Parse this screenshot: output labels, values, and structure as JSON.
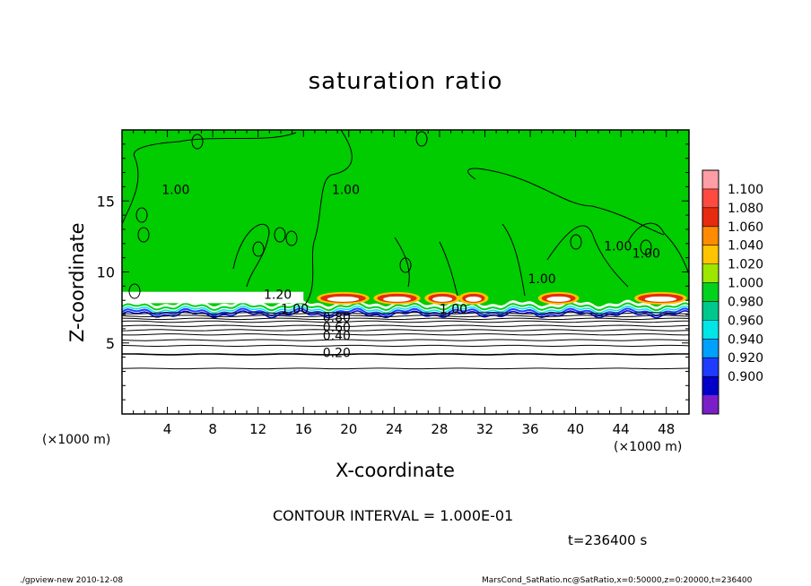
{
  "chart_data": {
    "type": "heatmap",
    "title": "saturation ratio",
    "xlabel": "X-coordinate",
    "ylabel": "Z-coordinate",
    "x_unit_label": "(×1000 m)",
    "xlim": [
      0,
      50
    ],
    "ylim": [
      0,
      20
    ],
    "x_ticks": [
      4,
      8,
      12,
      16,
      20,
      24,
      28,
      32,
      36,
      40,
      44,
      48
    ],
    "y_ticks": [
      5,
      10,
      15
    ],
    "colorbar": {
      "levels": [
        "1.100",
        "1.080",
        "1.060",
        "1.040",
        "1.020",
        "1.000",
        "0.980",
        "0.960",
        "0.940",
        "0.920",
        "0.900"
      ],
      "colors": [
        "#ff9ea4",
        "#ff4a40",
        "#e62b10",
        "#ff8c00",
        "#ffc400",
        "#9ce600",
        "#00d21e",
        "#00c88c",
        "#00e6e6",
        "#00a0ff",
        "#1e3cff",
        "#0000c8",
        "#7a1ec8"
      ]
    },
    "contour_labels": [
      {
        "text": "1.00",
        "x": 3.5,
        "z": 15.5
      },
      {
        "text": "1.00",
        "x": 18.5,
        "z": 15.5
      },
      {
        "text": "1.00",
        "x": 35.8,
        "z": 9.2
      },
      {
        "text": "1.00",
        "x": 42.5,
        "z": 11.5
      },
      {
        "text": "1.00",
        "x": 45.0,
        "z": 11.0
      },
      {
        "text": "1.20",
        "x": 12.5,
        "z": 8.1
      },
      {
        "text": "1.00",
        "x": 14.0,
        "z": 7.1
      },
      {
        "text": "1.00",
        "x": 28.0,
        "z": 7.1
      },
      {
        "text": "0.80",
        "x": 17.7,
        "z": 6.5
      },
      {
        "text": "0.60",
        "x": 17.7,
        "z": 5.8
      },
      {
        "text": "0.40",
        "x": 17.7,
        "z": 5.2
      },
      {
        "text": "0.20",
        "x": 17.7,
        "z": 4.0
      }
    ],
    "isolines_below_cloud_z": [
      3.2,
      4.2,
      4.8,
      5.2,
      5.6,
      5.9,
      6.2,
      6.5,
      6.7,
      6.9,
      7.1
    ],
    "cloud_base_z": 7.8,
    "colors": {
      "saturated_fill": "#00cc00",
      "subsaturated_fill": "#ffffff",
      "contour_line": "#000000"
    }
  },
  "contour_interval": "CONTOUR INTERVAL = 1.000E-01",
  "time_label": "t=236400 s",
  "footer_left": "./gpview-new   2010-12-08",
  "footer_right": "MarsCond_SatRatio.nc@SatRatio,x=0:50000,z=0:20000,t=236400"
}
